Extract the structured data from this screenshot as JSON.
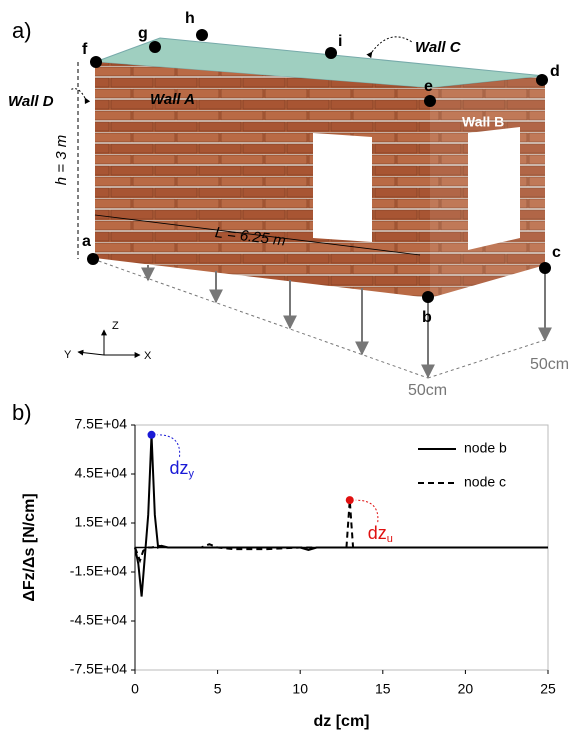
{
  "diagram": {
    "panel_label": "a)",
    "nodes": [
      "a",
      "b",
      "c",
      "d",
      "e",
      "f",
      "g",
      "h",
      "i"
    ],
    "walls": [
      "Wall A",
      "Wall B",
      "Wall C",
      "Wall D"
    ],
    "height": "h = 3 m",
    "length": "L = 6.25 m",
    "scale": [
      "50cm",
      "50cm"
    ],
    "axes": [
      "Z",
      "Y",
      "X"
    ]
  },
  "chart_data": {
    "type": "line",
    "panel_label": "b)",
    "x_label": "dz [cm]",
    "y_label": "ΔFz/Δs [N/cm]",
    "xlim": [
      0,
      25
    ],
    "xticks": [
      0,
      5,
      10,
      15,
      20,
      25
    ],
    "ylim": [
      -75000,
      75000
    ],
    "yticks": [
      {
        "value": -75000,
        "label": "-7.5E+04"
      },
      {
        "value": -45000,
        "label": "-4.5E+04"
      },
      {
        "value": -15000,
        "label": "-1.5E+04"
      },
      {
        "value": 15000,
        "label": "1.5E+04"
      },
      {
        "value": 45000,
        "label": "4.5E+04"
      },
      {
        "value": 75000,
        "label": "7.5E+04"
      }
    ],
    "legend": "upper right",
    "series": [
      {
        "name": "node b",
        "color": "#000000",
        "dash": "solid",
        "x": [
          0,
          0.2,
          0.4,
          0.6,
          0.8,
          1.0,
          1.2,
          1.4,
          1.6,
          2,
          3,
          5,
          8,
          10,
          10.5,
          11,
          13,
          15,
          20,
          25
        ],
        "values": [
          0,
          -10000,
          -30000,
          -5000,
          20000,
          69000,
          20000,
          0,
          1000,
          0,
          0,
          0,
          0,
          0,
          -1500,
          0,
          0,
          0,
          0,
          0
        ]
      },
      {
        "name": "node c",
        "color": "#000000",
        "dash": "dashed",
        "x": [
          0,
          0.3,
          0.5,
          0.8,
          1,
          1.5,
          2,
          3,
          4,
          4.5,
          5,
          6,
          8,
          10,
          12.8,
          13,
          13.2,
          14,
          20,
          25
        ],
        "values": [
          0,
          -8000,
          -2000,
          0,
          0,
          1000,
          0,
          0,
          0,
          2000,
          0,
          -1000,
          -1000,
          0,
          0,
          29000,
          0,
          0,
          0,
          0
        ]
      }
    ],
    "annotations": [
      {
        "text": "dz",
        "sub": "y",
        "x": 1,
        "y": 69000,
        "color": "#1a1ad6"
      },
      {
        "text": "dz",
        "sub": "u",
        "x": 13,
        "y": 29000,
        "color": "#e01010"
      }
    ]
  }
}
